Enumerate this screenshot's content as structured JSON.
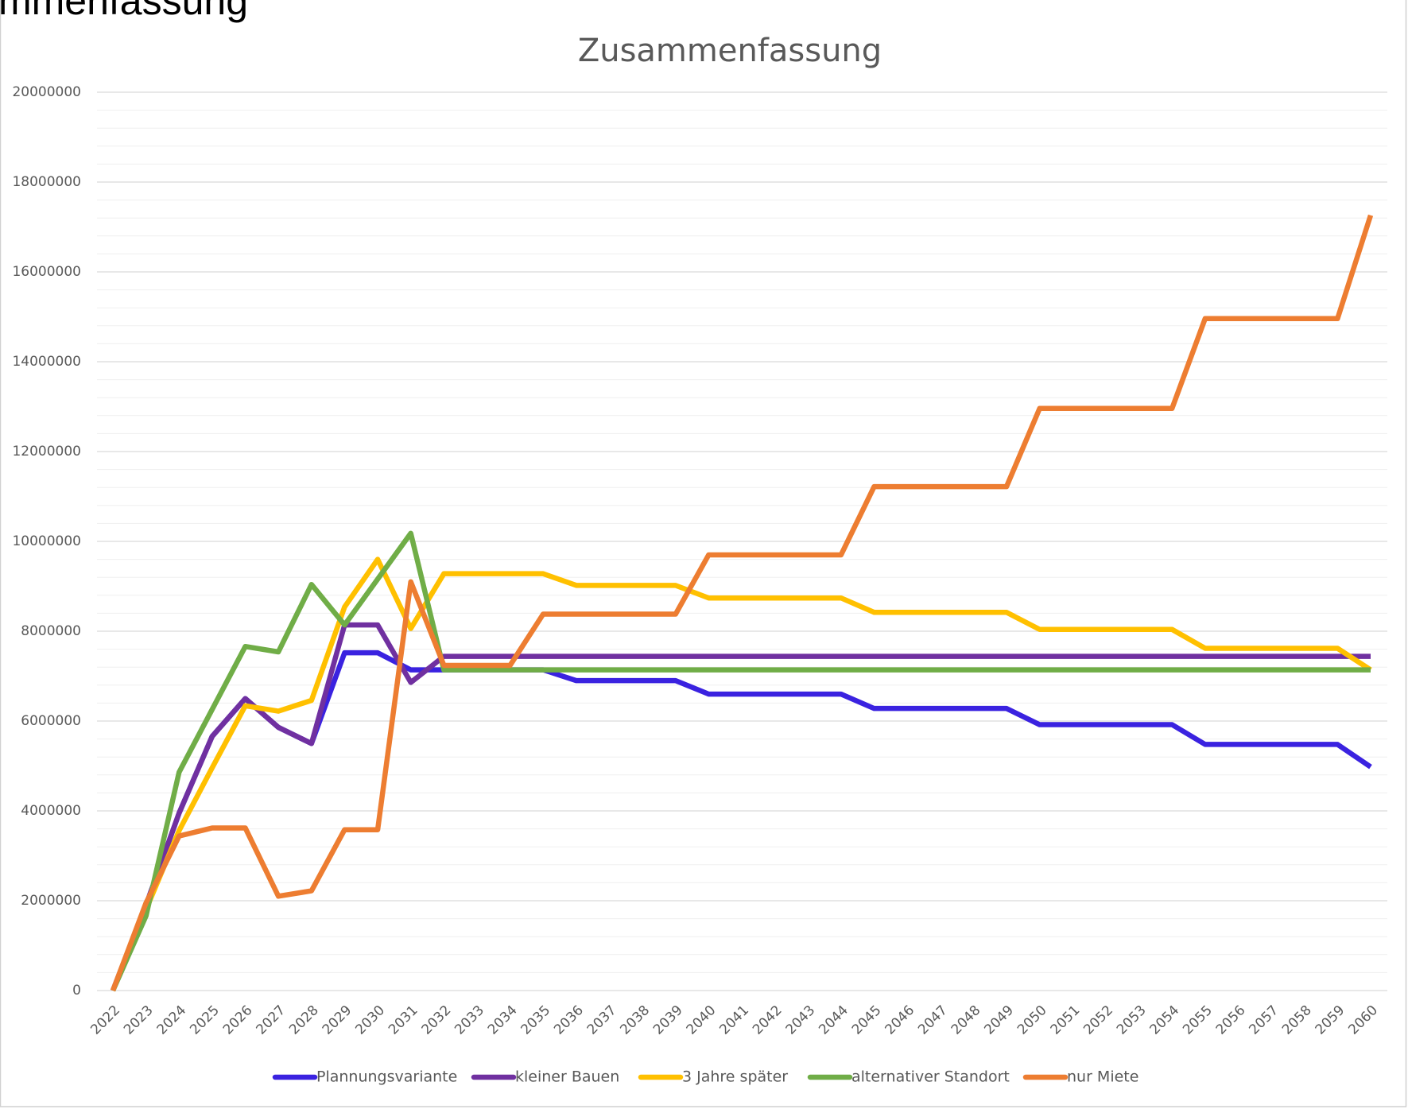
{
  "header_fragment": "mmenfassung",
  "chart_data": {
    "type": "line",
    "title": "Zusammenfassung",
    "x": [
      "2022",
      "2023",
      "2024",
      "2025",
      "2026",
      "2027",
      "2028",
      "2029",
      "2030",
      "2031",
      "2032",
      "2033",
      "2034",
      "2035",
      "2036",
      "2037",
      "2038",
      "2039",
      "2040",
      "2041",
      "2042",
      "2043",
      "2044",
      "2045",
      "2046",
      "2047",
      "2048",
      "2049",
      "2050",
      "2051",
      "2052",
      "2053",
      "2054",
      "2055",
      "2056",
      "2057",
      "2058",
      "2059",
      "2060"
    ],
    "ylim": [
      0,
      20000000
    ],
    "yticks": [
      0,
      2000000,
      4000000,
      6000000,
      8000000,
      10000000,
      12000000,
      14000000,
      16000000,
      18000000,
      20000000
    ],
    "grid": true,
    "legend": "bottom",
    "series": [
      {
        "name": "Plannungsvariante",
        "color": "#3a22e0",
        "values": [
          0,
          1900000,
          3950000,
          5660000,
          6500000,
          5860000,
          5500000,
          7520000,
          7520000,
          7140000,
          7140000,
          7140000,
          7140000,
          7140000,
          6900000,
          6900000,
          6900000,
          6900000,
          6600000,
          6600000,
          6600000,
          6600000,
          6600000,
          6280000,
          6280000,
          6280000,
          6280000,
          6280000,
          5920000,
          5920000,
          5920000,
          5920000,
          5920000,
          5480000,
          5480000,
          5480000,
          5480000,
          5480000,
          4980000
        ]
      },
      {
        "name": "kleiner Bauen",
        "color": "#7030a0",
        "values": [
          0,
          1900000,
          3950000,
          5660000,
          6500000,
          5860000,
          5500000,
          8140000,
          8140000,
          6860000,
          7440000,
          7440000,
          7440000,
          7440000,
          7440000,
          7440000,
          7440000,
          7440000,
          7440000,
          7440000,
          7440000,
          7440000,
          7440000,
          7440000,
          7440000,
          7440000,
          7440000,
          7440000,
          7440000,
          7440000,
          7440000,
          7440000,
          7440000,
          7440000,
          7440000,
          7440000,
          7440000,
          7440000,
          7440000
        ]
      },
      {
        "name": "3 Jahre später",
        "color": "#ffc000",
        "values": [
          0,
          1800000,
          3560000,
          4960000,
          6340000,
          6220000,
          6460000,
          8540000,
          9600000,
          8060000,
          9280000,
          9280000,
          9280000,
          9280000,
          9020000,
          9020000,
          9020000,
          9020000,
          8740000,
          8740000,
          8740000,
          8740000,
          8740000,
          8420000,
          8420000,
          8420000,
          8420000,
          8420000,
          8040000,
          8040000,
          8040000,
          8040000,
          8040000,
          7620000,
          7620000,
          7620000,
          7620000,
          7620000,
          7140000
        ]
      },
      {
        "name": "alternativer Standort",
        "color": "#70ad47",
        "values": [
          0,
          1660000,
          4860000,
          6260000,
          7660000,
          7540000,
          9040000,
          8140000,
          9160000,
          10180000,
          7140000,
          7140000,
          7140000,
          7140000,
          7140000,
          7140000,
          7140000,
          7140000,
          7140000,
          7140000,
          7140000,
          7140000,
          7140000,
          7140000,
          7140000,
          7140000,
          7140000,
          7140000,
          7140000,
          7140000,
          7140000,
          7140000,
          7140000,
          7140000,
          7140000,
          7140000,
          7140000,
          7140000,
          7140000
        ]
      },
      {
        "name": "nur Miete",
        "color": "#ed7d31",
        "values": [
          0,
          1950000,
          3440000,
          3620000,
          3620000,
          2100000,
          2220000,
          3580000,
          3580000,
          9100000,
          7240000,
          7240000,
          7240000,
          8380000,
          8380000,
          8380000,
          8380000,
          8380000,
          9700000,
          9700000,
          9700000,
          9700000,
          9700000,
          11220000,
          11220000,
          11220000,
          11220000,
          11220000,
          12960000,
          12960000,
          12960000,
          12960000,
          12960000,
          14960000,
          14960000,
          14960000,
          14960000,
          14960000,
          17260000
        ]
      }
    ]
  }
}
